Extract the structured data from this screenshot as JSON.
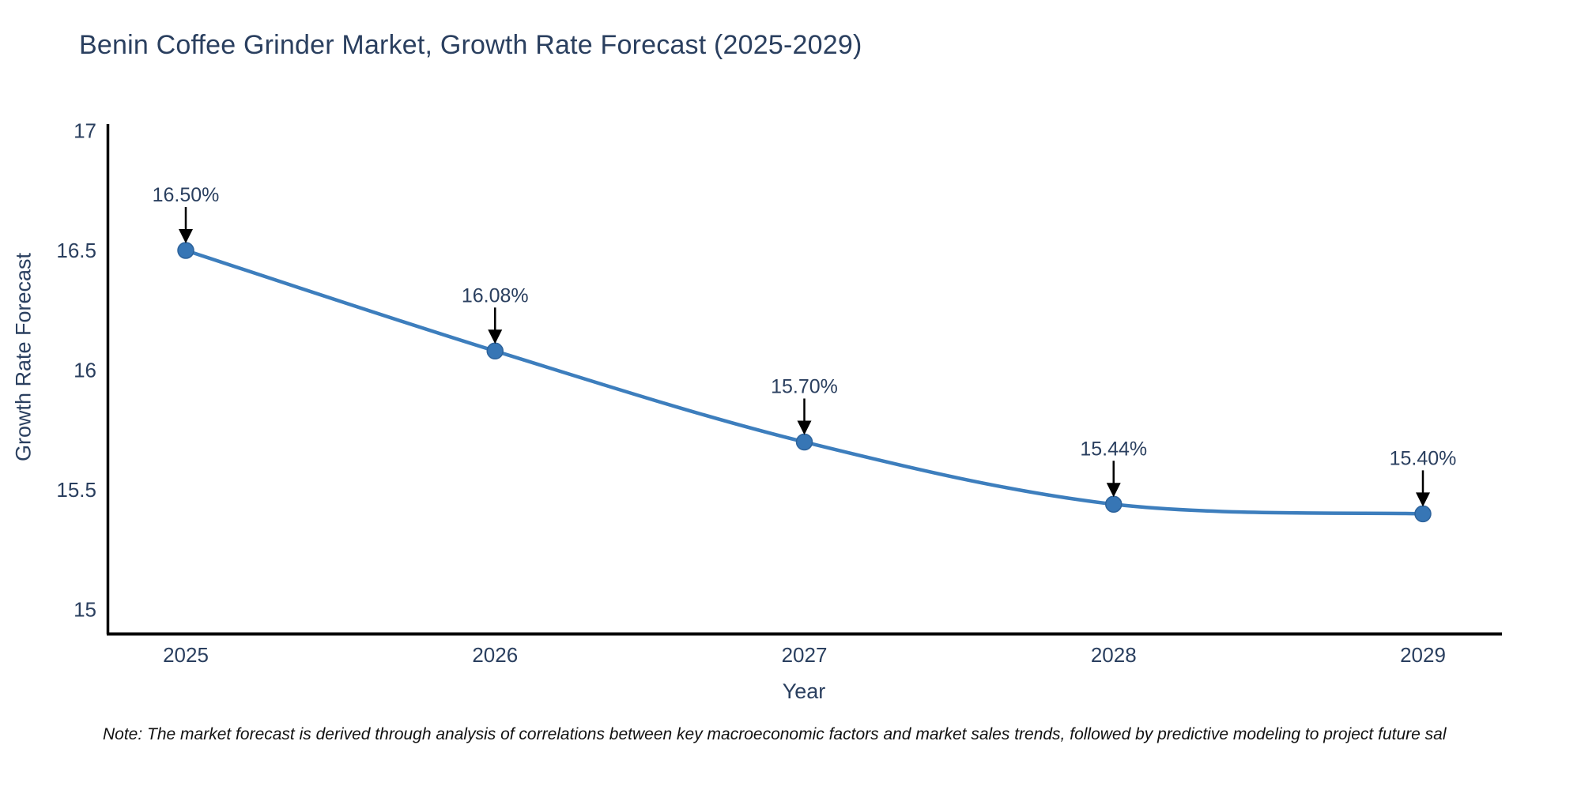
{
  "title": "Benin Coffee Grinder Market, Growth Rate Forecast (2025-2029)",
  "note": "Note: The market forecast is derived through analysis of correlations between key macroeconomic factors and market sales trends, followed by predictive modeling to project future sal",
  "chart_data": {
    "type": "line",
    "title": "Benin Coffee Grinder Market, Growth Rate Forecast (2025-2029)",
    "xlabel": "Year",
    "ylabel": "Growth Rate Forecast",
    "categories": [
      "2025",
      "2026",
      "2027",
      "2028",
      "2029"
    ],
    "series": [
      {
        "name": "Growth Rate Forecast",
        "values": [
          16.5,
          16.08,
          15.7,
          15.44,
          15.4
        ],
        "point_labels": [
          "16.50%",
          "16.08%",
          "15.70%",
          "15.44%",
          "15.40%"
        ]
      }
    ],
    "ylim": [
      14.903,
      17.028
    ],
    "yticks": [
      15,
      15.5,
      16,
      16.5,
      17
    ],
    "ytick_labels": [
      "15",
      "15.5",
      "16",
      "16.5",
      "17"
    ],
    "line_shape": "spline",
    "grid": false,
    "legend_position": "none",
    "colors": {
      "line": "#3d7ebd",
      "marker_fill": "#3776b5",
      "marker_edge": "#2d639c",
      "axis": "#000000",
      "arrow": "#000000",
      "text": "#2a3f5f"
    }
  }
}
